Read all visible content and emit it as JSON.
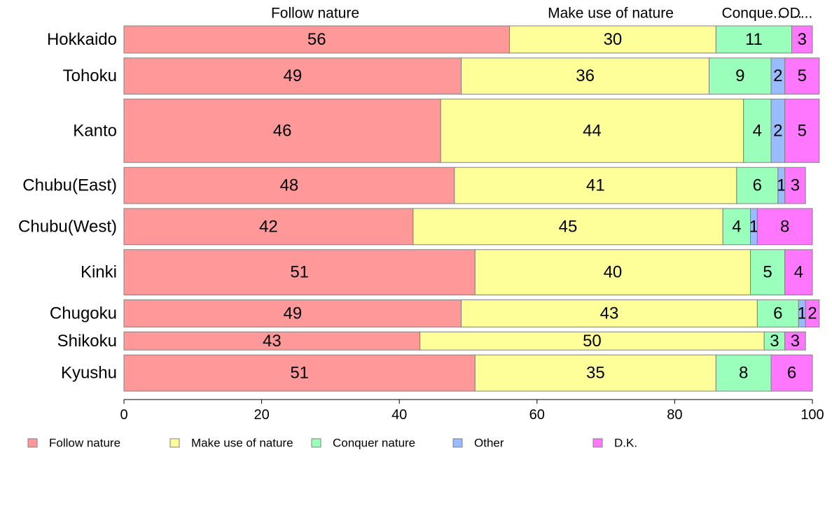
{
  "chart_data": {
    "type": "bar",
    "orientation": "horizontal",
    "stacked": true,
    "categories": [
      "Hokkaido",
      "Tohoku",
      "Kanto",
      "Chubu(East)",
      "Chubu(West)",
      "Kinki",
      "Chugoku",
      "Shikoku",
      "Kyushu"
    ],
    "series": [
      {
        "name": "Follow nature",
        "color": "#FF9999",
        "values": [
          56,
          49,
          46,
          48,
          42,
          51,
          49,
          43,
          51
        ]
      },
      {
        "name": "Make use of nature",
        "color": "#FFFF99",
        "values": [
          30,
          36,
          44,
          41,
          45,
          40,
          43,
          50,
          35
        ]
      },
      {
        "name": "Conquer nature",
        "color": "#99FFBB",
        "values": [
          11,
          9,
          4,
          6,
          4,
          5,
          6,
          3,
          8
        ]
      },
      {
        "name": "Other",
        "color": "#99BBFF",
        "values": [
          0,
          2,
          2,
          1,
          1,
          0,
          1,
          0,
          0
        ]
      },
      {
        "name": "D.K.",
        "color": "#FF77FF",
        "values": [
          3,
          5,
          5,
          3,
          8,
          4,
          2,
          3,
          6
        ]
      }
    ],
    "bar_weights": [
      3,
      4,
      7,
      4,
      4,
      5,
      3,
      2,
      4
    ],
    "top_labels": [
      "Follow nature",
      "Make use of nature",
      "Conque...",
      "O...",
      "D..."
    ],
    "xlim": [
      0,
      100
    ],
    "xticks": [
      "0",
      "20",
      "40",
      "60",
      "80",
      "100"
    ],
    "legend_position": "bottom",
    "grid": false
  }
}
